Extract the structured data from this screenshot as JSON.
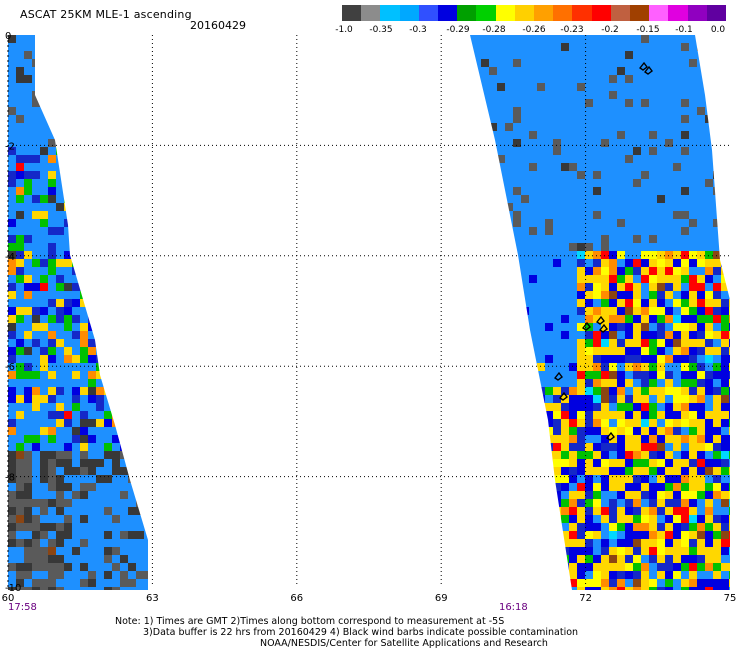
{
  "header": {
    "title": "ASCAT 25KM MLE-1 ascending",
    "date": "20160429"
  },
  "colorbar": {
    "colors": [
      "#404040",
      "#8c8c8c",
      "#00c0ff",
      "#00a8ff",
      "#3050ff",
      "#0000e0",
      "#00a000",
      "#00d000",
      "#ffff00",
      "#ffd000",
      "#ffa000",
      "#ff7000",
      "#ff3000",
      "#ff0000",
      "#c06040",
      "#a04000",
      "#ff60ff",
      "#e000e0",
      "#9000c0",
      "#6000a0"
    ],
    "labels": [
      "-1.0",
      "-0.35",
      "-0.3",
      "-0.29",
      "-0.28",
      "-0.26",
      "-0.23",
      "-0.2",
      "-0.15",
      "-0.1",
      "0.0"
    ]
  },
  "map": {
    "x_ticks": [
      "60",
      "63",
      "66",
      "69",
      "72",
      "75"
    ],
    "y_ticks": [
      "0",
      "-2",
      "-4",
      "-6",
      "-8",
      "-10"
    ],
    "lon_range": [
      60,
      75
    ],
    "lat_range": [
      0,
      -10
    ],
    "pass_times": [
      {
        "label": "17:58",
        "lon": 60.0
      },
      {
        "label": "16:18",
        "lon": 70.2
      }
    ],
    "swath_colors": {
      "background": "#1e90ff",
      "gray": "#5a5a5a",
      "dark": "#383838",
      "yellow": "#ffd700",
      "yellow2": "#ffff00",
      "orange": "#ff8c00",
      "red": "#ff0000",
      "green": "#00c000",
      "blue": "#0000e0",
      "darkblue": "#1428c8",
      "cyan": "#00d8ff",
      "brown": "#8b4513"
    }
  },
  "notes": {
    "line1": "Note: 1) Times are GMT 2)Times along bottom correspond to measurement at -5S",
    "line2": "3)Data buffer is 22 hrs from 20160429 4) Black wind barbs indicate possible contamination",
    "line3": "NOAA/NESDIS/Center for Satellite Applications and Research"
  }
}
